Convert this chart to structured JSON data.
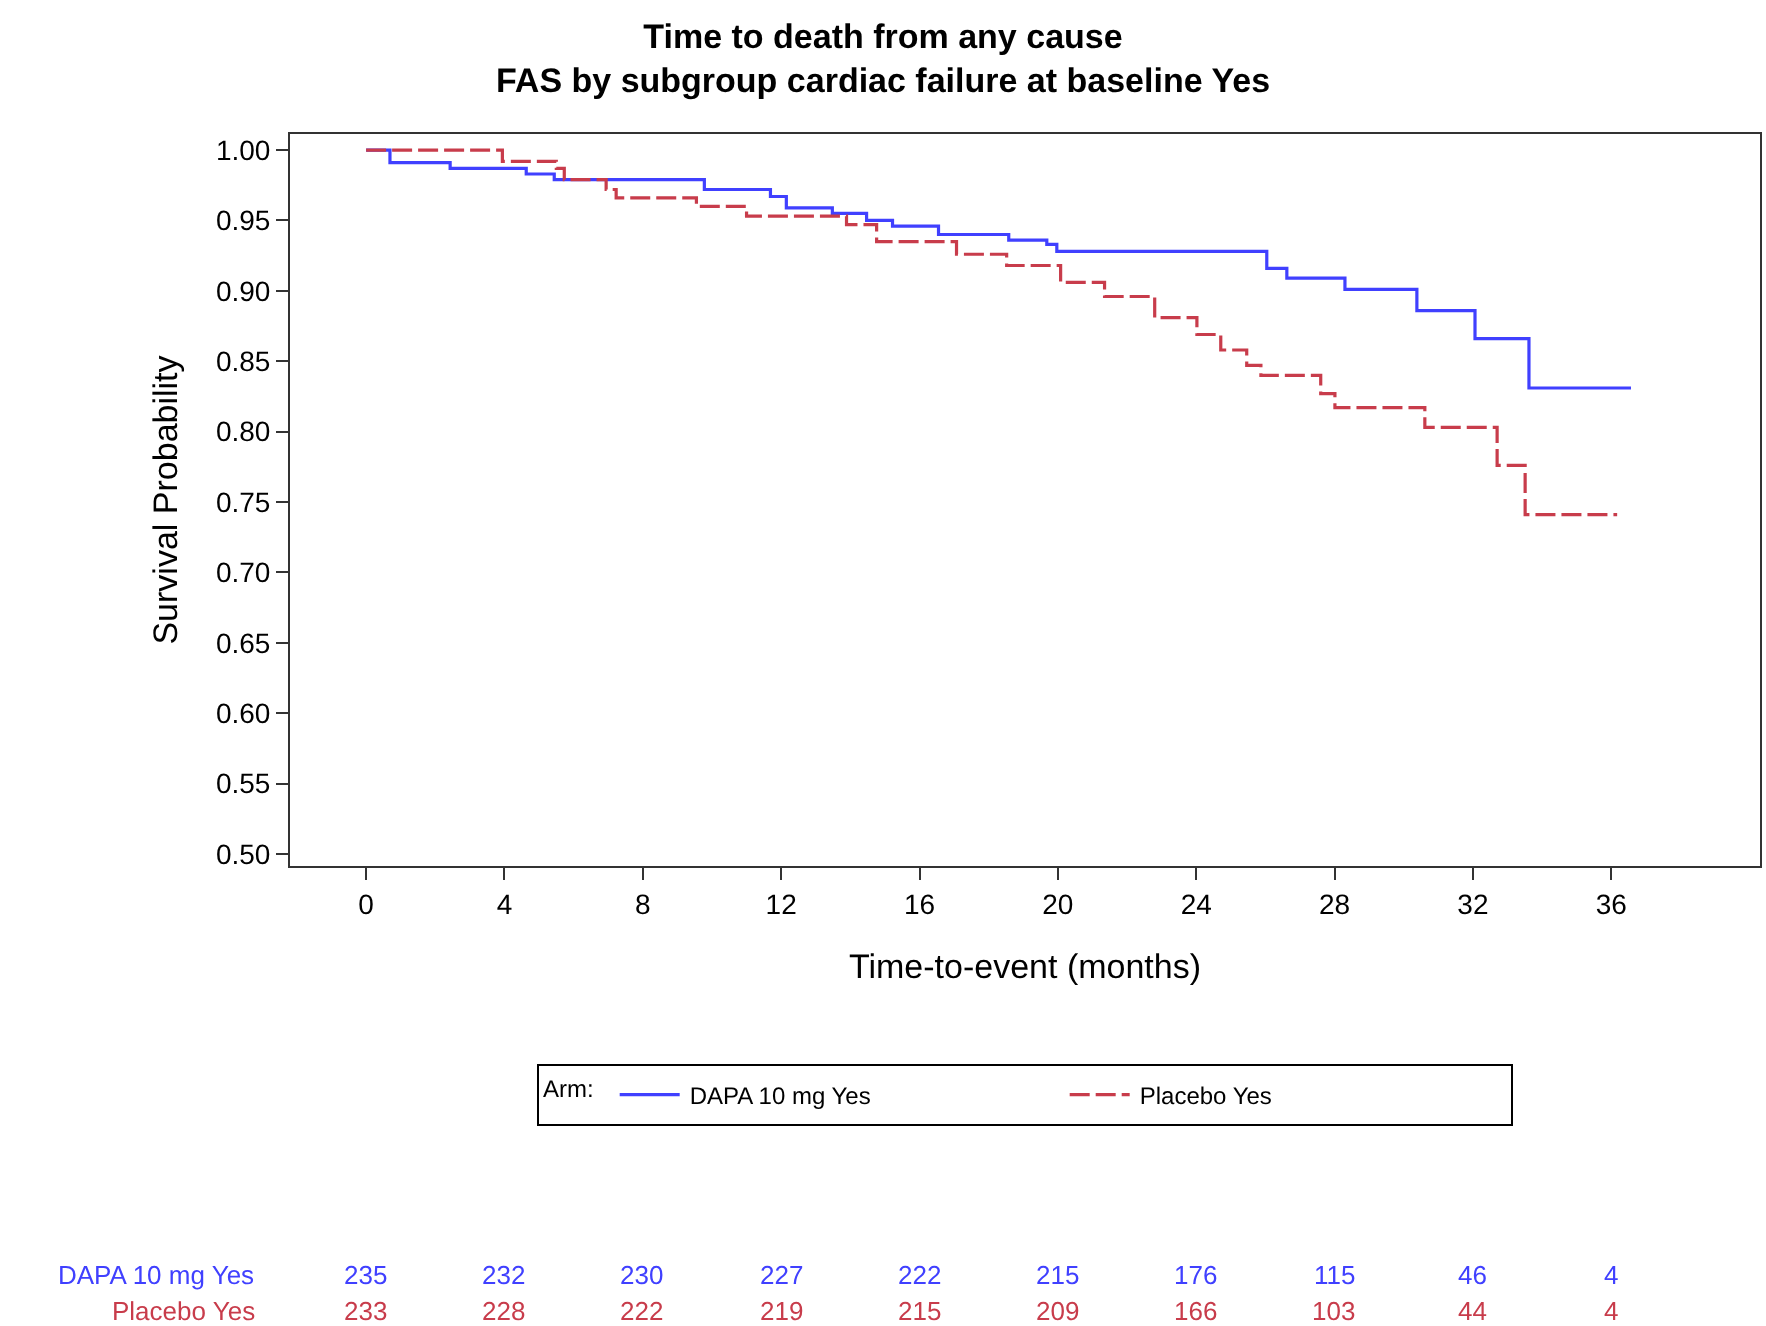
{
  "chart_data": {
    "type": "step",
    "title": "Time to death from any cause\nFAS by subgroup cardiac failure at baseline Yes",
    "xlabel": "Time-to-event (months)",
    "ylabel": "Survival Probability",
    "legend_title": "Arm:",
    "series": [
      {
        "name": "DAPA 10 mg Yes",
        "color": "#4040ff",
        "line_style": "solid",
        "x": [
          0,
          0.69,
          2.43,
          4.63,
          5.44,
          9.78,
          11.69,
          12.15,
          13.48,
          14.47,
          15.22,
          16.55,
          18.58,
          19.68,
          19.97,
          26.04,
          26.62,
          28.3,
          30.38,
          32.06,
          33.62,
          36.57
        ],
        "values": [
          1.0,
          0.991,
          0.987,
          0.983,
          0.979,
          0.972,
          0.967,
          0.959,
          0.955,
          0.95,
          0.946,
          0.94,
          0.936,
          0.933,
          0.928,
          0.916,
          0.909,
          0.901,
          0.886,
          0.866,
          0.831,
          0.831
        ]
      },
      {
        "name": "Placebo Yes",
        "color": "#c83c4b",
        "line_style": "dashed",
        "x": [
          0,
          3.94,
          5.5,
          5.73,
          6.94,
          7.23,
          9.55,
          11.0,
          13.89,
          14.76,
          17.07,
          18.52,
          20.08,
          21.35,
          22.8,
          24.02,
          24.71,
          25.46,
          25.87,
          27.6,
          28.01,
          30.61,
          32.7,
          33.51,
          36.17
        ],
        "values": [
          1.0,
          0.992,
          0.987,
          0.979,
          0.972,
          0.966,
          0.96,
          0.953,
          0.947,
          0.935,
          0.926,
          0.918,
          0.906,
          0.896,
          0.881,
          0.869,
          0.858,
          0.847,
          0.84,
          0.827,
          0.817,
          0.803,
          0.776,
          0.741,
          0.741
        ]
      }
    ],
    "xlim": [
      -2.2,
      40.3
    ],
    "xticks": [
      0,
      4,
      8,
      12,
      16,
      20,
      24,
      28,
      32,
      36
    ],
    "ylim": [
      0.4915,
      1.0114
    ],
    "yticks": [
      {
        "value": 0.5,
        "label": "0.50"
      },
      {
        "value": 0.55,
        "label": "0.55"
      },
      {
        "value": 0.6,
        "label": "0.60"
      },
      {
        "value": 0.65,
        "label": "0.65"
      },
      {
        "value": 0.7,
        "label": "0.70"
      },
      {
        "value": 0.75,
        "label": "0.75"
      },
      {
        "value": 0.8,
        "label": "0.80"
      },
      {
        "value": 0.85,
        "label": "0.85"
      },
      {
        "value": 0.9,
        "label": "0.90"
      },
      {
        "value": 0.95,
        "label": "0.95"
      },
      {
        "value": 1.0,
        "label": "1.00"
      }
    ],
    "annotations": [
      "DAPA 10 mg Yes",
      "235",
      "232",
      "230",
      "227",
      "222",
      "215",
      "176",
      "115",
      "46",
      "4",
      "Placebo Yes",
      "233",
      "228",
      "222",
      "219",
      "215",
      "209",
      "166",
      "103",
      "44",
      "4"
    ],
    "legend": "bottom",
    "marker": "none"
  }
}
